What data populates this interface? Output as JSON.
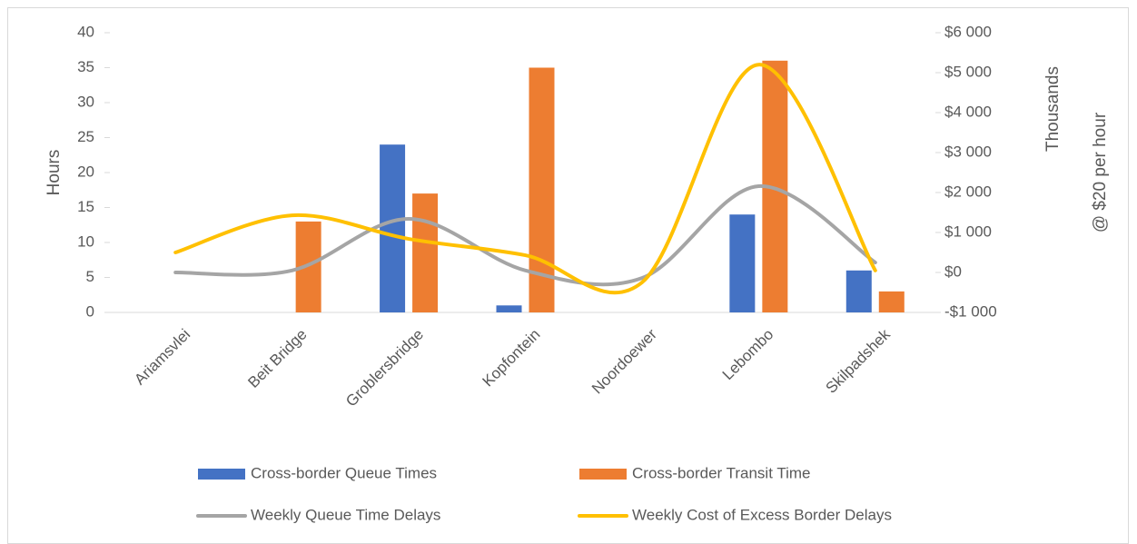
{
  "chart_data": {
    "type": "bar",
    "y_label": "Hours",
    "y2_label": "Thousands",
    "y2_sublabel": "@ $20 per hour",
    "categories": [
      "Ariamsvlei",
      "Beit Bridge",
      "Groblersbridge",
      "Kopfontein",
      "Noordoewer",
      "Lebombo",
      "Skilpadshek"
    ],
    "series": [
      {
        "name": "Cross-border Queue Times",
        "type": "bar",
        "color": "#4472c4",
        "values": [
          0,
          0,
          24,
          1,
          0,
          14,
          6
        ]
      },
      {
        "name": "Cross-border Transit Time",
        "type": "bar",
        "color": "#ed7d31",
        "values": [
          0,
          13,
          17,
          35,
          0,
          36,
          3
        ]
      },
      {
        "name": "Weekly Queue Time Delays",
        "type": "line",
        "axis": "y2",
        "color": "#a5a5a5",
        "values": [
          0,
          50,
          1340,
          50,
          -140,
          2160,
          250
        ]
      },
      {
        "name": "Weekly Cost of Excess Border Delays",
        "type": "line",
        "axis": "y2",
        "color": "#ffc000",
        "values": [
          500,
          1430,
          840,
          430,
          -250,
          5200,
          50
        ]
      }
    ],
    "ylim": [
      0,
      40
    ],
    "yticks": [
      0,
      5,
      10,
      15,
      20,
      25,
      30,
      35,
      40
    ],
    "y2lim": [
      -1000,
      6000
    ],
    "y2ticks": [
      {
        "value": -1000,
        "label": "-$1 000"
      },
      {
        "value": 0,
        "label": "$0"
      },
      {
        "value": 1000,
        "label": "$1 000"
      },
      {
        "value": 2000,
        "label": "$2 000"
      },
      {
        "value": 3000,
        "label": "$3 000"
      },
      {
        "value": 4000,
        "label": "$4 000"
      },
      {
        "value": 5000,
        "label": "$5 000"
      },
      {
        "value": 6000,
        "label": "$6 000"
      }
    ]
  }
}
